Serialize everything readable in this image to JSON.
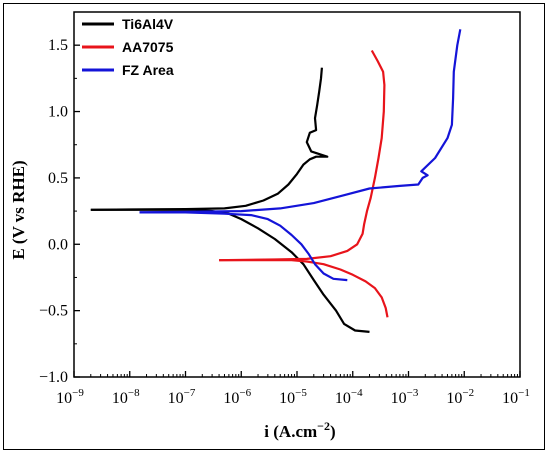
{
  "chart_data": {
    "type": "line",
    "xlabel": "i (A.cm",
    "xlabel_sup": "−2",
    "xlabel_close": ")",
    "ylabel": "E (V vs RHE)",
    "x_scale": "log",
    "xlim": [
      1e-09,
      0.1
    ],
    "ylim": [
      -1.0,
      1.75
    ],
    "x_ticks": [
      {
        "value": 1e-09,
        "base": "10",
        "exp": "−9"
      },
      {
        "value": 1e-08,
        "base": "10",
        "exp": "−8"
      },
      {
        "value": 1e-07,
        "base": "10",
        "exp": "−7"
      },
      {
        "value": 1e-06,
        "base": "10",
        "exp": "−6"
      },
      {
        "value": 1e-05,
        "base": "10",
        "exp": "−5"
      },
      {
        "value": 0.0001,
        "base": "10",
        "exp": "−4"
      },
      {
        "value": 0.001,
        "base": "10",
        "exp": "−3"
      },
      {
        "value": 0.01,
        "base": "10",
        "exp": "−2"
      },
      {
        "value": 0.1,
        "base": "10",
        "exp": "−1"
      }
    ],
    "y_ticks": [
      {
        "value": -1.0,
        "label": "−1.0"
      },
      {
        "value": -0.5,
        "label": "−0.5"
      },
      {
        "value": 0.0,
        "label": "0.0"
      },
      {
        "value": 0.5,
        "label": "0.5"
      },
      {
        "value": 1.0,
        "label": "1.0"
      },
      {
        "value": 1.5,
        "label": "1.5"
      }
    ],
    "grid": false,
    "legend_position": "top-left",
    "series": [
      {
        "name": "Ti6Al4V",
        "color": "#000000",
        "points": [
          [
            2e-09,
            0.26
          ],
          [
            1e-08,
            0.26
          ],
          [
            5e-08,
            0.26
          ],
          [
            1.5e-07,
            0.26
          ],
          [
            3e-07,
            0.25
          ],
          [
            6e-07,
            0.23
          ],
          [
            1e-06,
            0.19
          ],
          [
            2e-06,
            0.12
          ],
          [
            4e-06,
            0.04
          ],
          [
            8e-06,
            -0.06
          ],
          [
            1.3e-05,
            -0.15
          ],
          [
            2e-05,
            -0.27
          ],
          [
            3e-05,
            -0.38
          ],
          [
            5e-05,
            -0.5
          ],
          [
            7e-05,
            -0.6
          ],
          [
            0.00011,
            -0.65
          ],
          [
            0.0002,
            -0.66
          ]
        ]
      },
      {
        "name": "Ti6Al4V",
        "color": "#000000",
        "points": [
          [
            2e-09,
            0.26
          ],
          [
            1e-07,
            0.265
          ],
          [
            5e-07,
            0.27
          ],
          [
            1.2e-06,
            0.29
          ],
          [
            2.5e-06,
            0.33
          ],
          [
            4.5e-06,
            0.38
          ],
          [
            7e-06,
            0.45
          ],
          [
            1e-05,
            0.53
          ],
          [
            1.3e-05,
            0.6
          ],
          [
            1.7e-05,
            0.64
          ],
          [
            2.2e-05,
            0.66
          ],
          [
            3.5e-05,
            0.66
          ],
          [
            1.8e-05,
            0.7
          ],
          [
            1.5e-05,
            0.77
          ],
          [
            1.7e-05,
            0.84
          ],
          [
            2.2e-05,
            0.86
          ],
          [
            2.1e-05,
            0.95
          ],
          [
            2.3e-05,
            1.05
          ],
          [
            2.5e-05,
            1.15
          ],
          [
            2.7e-05,
            1.25
          ],
          [
            2.8e-05,
            1.33
          ]
        ]
      },
      {
        "name": "AA7075",
        "color": "#e8141b",
        "points": [
          [
            4e-07,
            -0.12
          ],
          [
            1e-06,
            -0.12
          ],
          [
            3e-06,
            -0.12
          ],
          [
            8e-06,
            -0.12
          ],
          [
            1.5e-05,
            -0.13
          ],
          [
            3e-05,
            -0.15
          ],
          [
            6e-05,
            -0.19
          ],
          [
            0.0001,
            -0.23
          ],
          [
            0.00017,
            -0.28
          ],
          [
            0.00025,
            -0.33
          ],
          [
            0.00033,
            -0.4
          ],
          [
            0.00039,
            -0.48
          ],
          [
            0.00042,
            -0.55
          ]
        ]
      },
      {
        "name": "AA7075",
        "color": "#e8141b",
        "points": [
          [
            4e-07,
            -0.12
          ],
          [
            4e-06,
            -0.115
          ],
          [
            1.5e-05,
            -0.11
          ],
          [
            4e-05,
            -0.09
          ],
          [
            8e-05,
            -0.05
          ],
          [
            0.00012,
            0.0
          ],
          [
            0.00015,
            0.08
          ],
          [
            0.00016,
            0.15
          ],
          [
            0.00018,
            0.25
          ],
          [
            0.00021,
            0.35
          ],
          [
            0.00025,
            0.5
          ],
          [
            0.00029,
            0.65
          ],
          [
            0.00033,
            0.8
          ],
          [
            0.00036,
            1.0
          ],
          [
            0.00037,
            1.2
          ],
          [
            0.00035,
            1.3
          ],
          [
            0.00028,
            1.38
          ],
          [
            0.00022,
            1.46
          ]
        ]
      },
      {
        "name": "FZ Area",
        "color": "#1414d8",
        "points": [
          [
            1.5e-08,
            0.24
          ],
          [
            1e-07,
            0.24
          ],
          [
            5e-07,
            0.23
          ],
          [
            1.5e-06,
            0.22
          ],
          [
            3e-06,
            0.19
          ],
          [
            5e-06,
            0.14
          ],
          [
            8e-06,
            0.07
          ],
          [
            1.2e-05,
            0.0
          ],
          [
            1.6e-05,
            -0.07
          ],
          [
            2.1e-05,
            -0.15
          ],
          [
            3e-05,
            -0.22
          ],
          [
            4.5e-05,
            -0.26
          ],
          [
            8e-05,
            -0.27
          ]
        ]
      },
      {
        "name": "FZ Area",
        "color": "#1414d8",
        "points": [
          [
            1.5e-08,
            0.24
          ],
          [
            1e-07,
            0.245
          ],
          [
            1e-06,
            0.25
          ],
          [
            5e-06,
            0.27
          ],
          [
            2e-05,
            0.31
          ],
          [
            7e-05,
            0.37
          ],
          [
            0.0002,
            0.42
          ],
          [
            0.0007,
            0.44
          ],
          [
            0.0015,
            0.45
          ],
          [
            0.0018,
            0.5
          ],
          [
            0.0022,
            0.52
          ],
          [
            0.0017,
            0.55
          ],
          [
            0.003,
            0.65
          ],
          [
            0.005,
            0.8
          ],
          [
            0.006,
            0.9
          ],
          [
            0.0063,
            1.1
          ],
          [
            0.0065,
            1.3
          ],
          [
            0.0075,
            1.5
          ],
          [
            0.0085,
            1.62
          ]
        ]
      }
    ],
    "legend": [
      {
        "label": "Ti6Al4V",
        "color": "#000000"
      },
      {
        "label": "AA7075",
        "color": "#e8141b"
      },
      {
        "label": "FZ Area",
        "color": "#1414d8"
      }
    ]
  }
}
